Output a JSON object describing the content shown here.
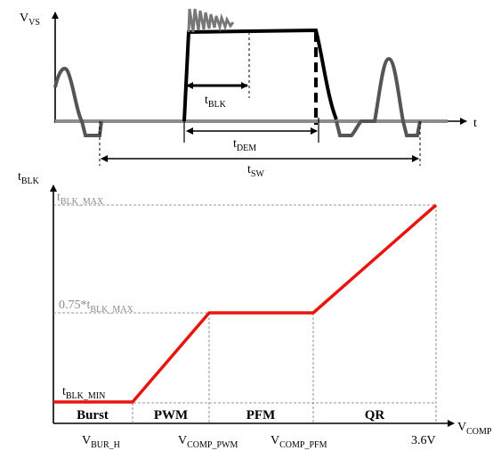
{
  "top_waveform": {
    "y_axis": {
      "main": "V",
      "sub": "VS"
    },
    "x_axis": "t",
    "t_blk": {
      "main": "t",
      "sub": "BLK"
    },
    "t_dem": {
      "main": "t",
      "sub": "DEM"
    },
    "t_sw": {
      "main": "t",
      "sub": "SW"
    }
  },
  "bottom_chart": {
    "y_axis": {
      "main": "t",
      "sub": "BLK"
    },
    "x_axis": {
      "main": "V",
      "sub": "COMP"
    },
    "max_label": {
      "main": "t",
      "sub": "BLK_MAX"
    },
    "mid_label": {
      "main": "0.75*t",
      "sub": "BLK_MAX"
    },
    "min_label": {
      "main": "t",
      "sub": "BLK_MIN"
    },
    "modes": [
      "Burst",
      "PWM",
      "PFM",
      "QR"
    ],
    "x_ticks": [
      {
        "main": "V",
        "sub": "BUR_H"
      },
      {
        "main": "V",
        "sub": "COMP_PWM"
      },
      {
        "main": "V",
        "sub": "COMP_PFM"
      },
      {
        "main": "3.6V",
        "sub": ""
      }
    ],
    "line_color": "#e8150f"
  }
}
